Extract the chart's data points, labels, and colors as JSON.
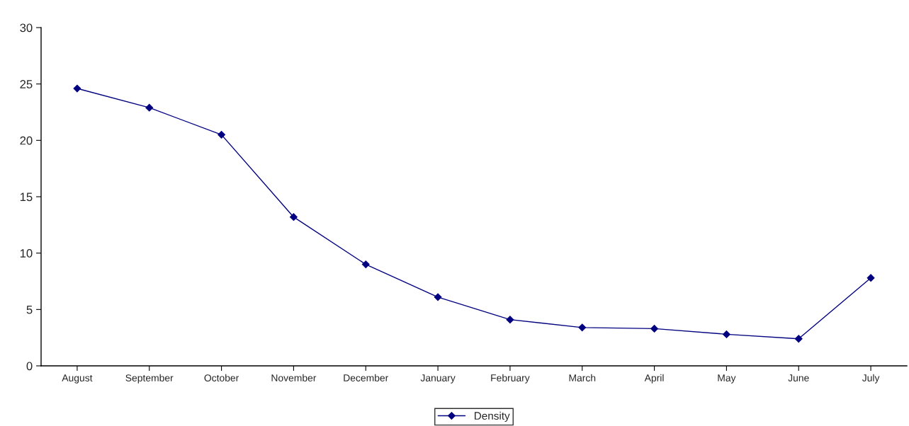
{
  "chart_data": {
    "type": "line",
    "categories": [
      "August",
      "September",
      "October",
      "November",
      "December",
      "January",
      "February",
      "March",
      "April",
      "May",
      "June",
      "July"
    ],
    "series": [
      {
        "name": "Density",
        "color": "#000080",
        "values": [
          24.6,
          22.9,
          20.5,
          13.2,
          9.0,
          6.1,
          4.1,
          3.4,
          3.3,
          2.8,
          2.4,
          7.8
        ]
      }
    ],
    "ylim": [
      0,
      30
    ],
    "yticks": [
      0,
      5,
      10,
      15,
      20,
      25,
      30
    ],
    "marker": "diamond",
    "line_style": "solid",
    "grid": false,
    "legend": "bottom"
  }
}
